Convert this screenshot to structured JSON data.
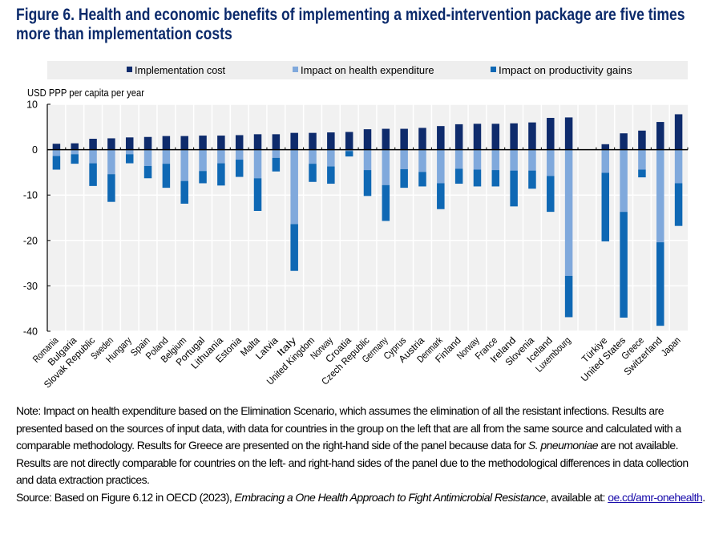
{
  "title": "Figure 6. Health and economic benefits of implementing a mixed-intervention package are five times more than implementation costs",
  "note": {
    "pre": "Note: Impact on health expenditure based on the Elimination Scenario, which assumes the elimination of all the resistant infections. Results are presented based on the sources of input data, with data for countries in the group on the left that are all from the same source and calculated with a comparable methodology. Results for Greece are presented on the right-hand side of the panel because data for ",
    "italic": "S. pneumoniae",
    "post": " are not available. Results are not directly comparable for countries on the left- and right-hand sides of the panel due to the methodological differences in data collection and data extraction practices."
  },
  "source": {
    "pre": "Source: Based on Figure 6.12 in OECD (2023), ",
    "italic": "Embracing a One Health Approach to Fight Antimicrobial Resistance",
    "mid": ", available at: ",
    "link": "oe.cd/amr-onehealth"
  },
  "chart_data": {
    "type": "bar",
    "stacked": true,
    "ylabel": "USD PPP per capita per year",
    "ylim": [
      -40,
      10
    ],
    "yticks": [
      10,
      0,
      -10,
      -20,
      -30,
      -40
    ],
    "grid": true,
    "legend_position": "top",
    "colors": {
      "Implementation cost": "#0e2b6c",
      "Impact on health expenditure": "#80a9dc",
      "Impact on productivity gains": "#0f68b4",
      "plot_background": "#f1f1f1"
    },
    "groups": [
      {
        "categories": [
          "Romania",
          "Bulgaria",
          "Slovak Republic",
          "Sweden",
          "Hungary",
          "Spain",
          "Poland",
          "Belgium",
          "Portugal",
          "Lithuania",
          "Estonia",
          "Malta",
          "Latvia",
          "Italy",
          "United Kingdom",
          "Norway",
          "Croatia",
          "Czech Republic",
          "Germany",
          "Cyprus",
          "Austria",
          "Denmark",
          "Finland",
          "Norway",
          "France",
          "Ireland",
          "Slovenia",
          "Iceland",
          "Luxembourg"
        ]
      },
      {
        "categories": [
          "Türkiye",
          "United States",
          "Greece",
          "Switzerland",
          "Japan"
        ]
      }
    ],
    "categories": [
      "Romania",
      "Bulgaria",
      "Slovak Republic",
      "Sweden",
      "Hungary",
      "Spain",
      "Poland",
      "Belgium",
      "Portugal",
      "Lithuania",
      "Estonia",
      "Malta",
      "Latvia",
      "Italy",
      "United Kingdom",
      "Norway",
      "Croatia",
      "Czech Republic",
      "Germany",
      "Cyprus",
      "Austria",
      "Denmark",
      "Finland",
      "Norway",
      "France",
      "Ireland",
      "Slovenia",
      "Iceland",
      "Luxembourg",
      "Türkiye",
      "United States",
      "Greece",
      "Switzerland",
      "Japan"
    ],
    "series": [
      {
        "name": "Implementation cost",
        "values": [
          1.3,
          1.4,
          2.4,
          2.5,
          2.7,
          2.8,
          3.0,
          3.0,
          3.1,
          3.1,
          3.2,
          3.4,
          3.4,
          3.7,
          3.7,
          3.8,
          3.9,
          4.5,
          4.6,
          4.6,
          4.8,
          5.2,
          5.6,
          5.7,
          5.7,
          5.8,
          6.0,
          7.0,
          7.1,
          1.2,
          3.6,
          4.2,
          6.1,
          7.8
        ]
      },
      {
        "name": "Impact on health expenditure",
        "values": [
          -1.4,
          -1.0,
          -3.0,
          -5.4,
          -1.0,
          -3.6,
          -3.1,
          -6.9,
          -4.7,
          -3.0,
          -2.2,
          -6.3,
          -1.8,
          -16.4,
          -3.1,
          -3.7,
          -0.3,
          -4.5,
          -7.8,
          -4.3,
          -4.9,
          -7.4,
          -4.2,
          -4.4,
          -4.5,
          -4.6,
          -4.6,
          -5.8,
          -27.8,
          -5.1,
          -13.7,
          -4.4,
          -20.4,
          -7.4
        ]
      },
      {
        "name": "Impact on productivity gains",
        "values": [
          -3.0,
          -2.1,
          -5.0,
          -6.1,
          -2.0,
          -2.7,
          -5.3,
          -5.0,
          -2.7,
          -4.9,
          -3.8,
          -7.2,
          -3.0,
          -10.3,
          -4.0,
          -3.8,
          -1.2,
          -5.7,
          -7.9,
          -4.1,
          -3.2,
          -5.7,
          -3.3,
          -3.7,
          -3.6,
          -7.9,
          -4.0,
          -7.9,
          -9.1,
          -15.1,
          -23.3,
          -1.7,
          -18.4,
          -9.4
        ]
      }
    ]
  }
}
